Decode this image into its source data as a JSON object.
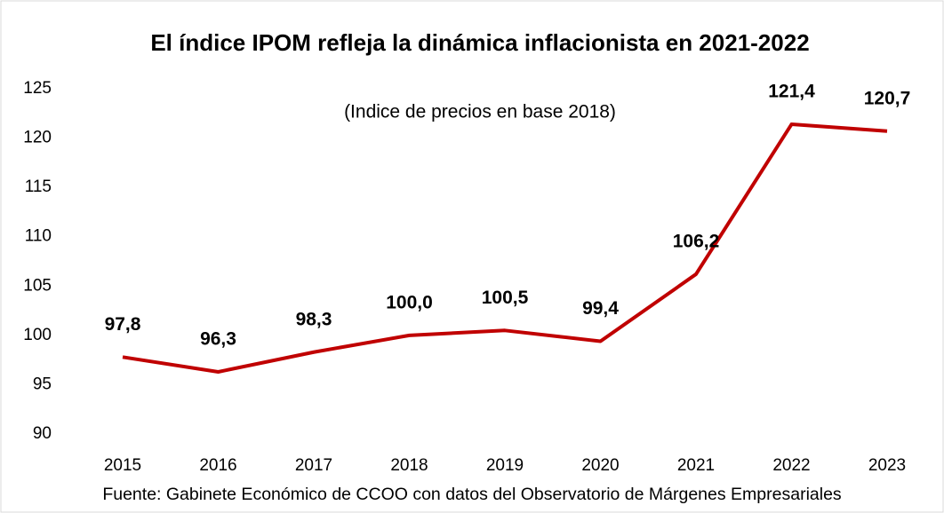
{
  "chart_data": {
    "type": "line",
    "title": "El índice IPOM refleja la dinámica inflacionista en 2021-2022",
    "subtitle": "(Indice de precios en base 2018)",
    "source": "Fuente: Gabinete Económico de CCOO con datos del Observatorio de Márgenes Empresariales",
    "categories": [
      "2015",
      "2016",
      "2017",
      "2018",
      "2019",
      "2020",
      "2021",
      "2022",
      "2023"
    ],
    "series": [
      {
        "name": "IPOM",
        "color": "#c00000",
        "values": [
          97.8,
          96.3,
          98.3,
          100.0,
          100.5,
          99.4,
          106.2,
          121.4,
          120.7
        ],
        "value_labels": [
          "97,8",
          "96,3",
          "98,3",
          "100,0",
          "100,5",
          "99,4",
          "106,2",
          "121,4",
          "120,7"
        ]
      }
    ],
    "ylim": [
      90,
      125
    ],
    "yticks": [
      90,
      95,
      100,
      105,
      110,
      115,
      120,
      125
    ],
    "grid": false
  }
}
